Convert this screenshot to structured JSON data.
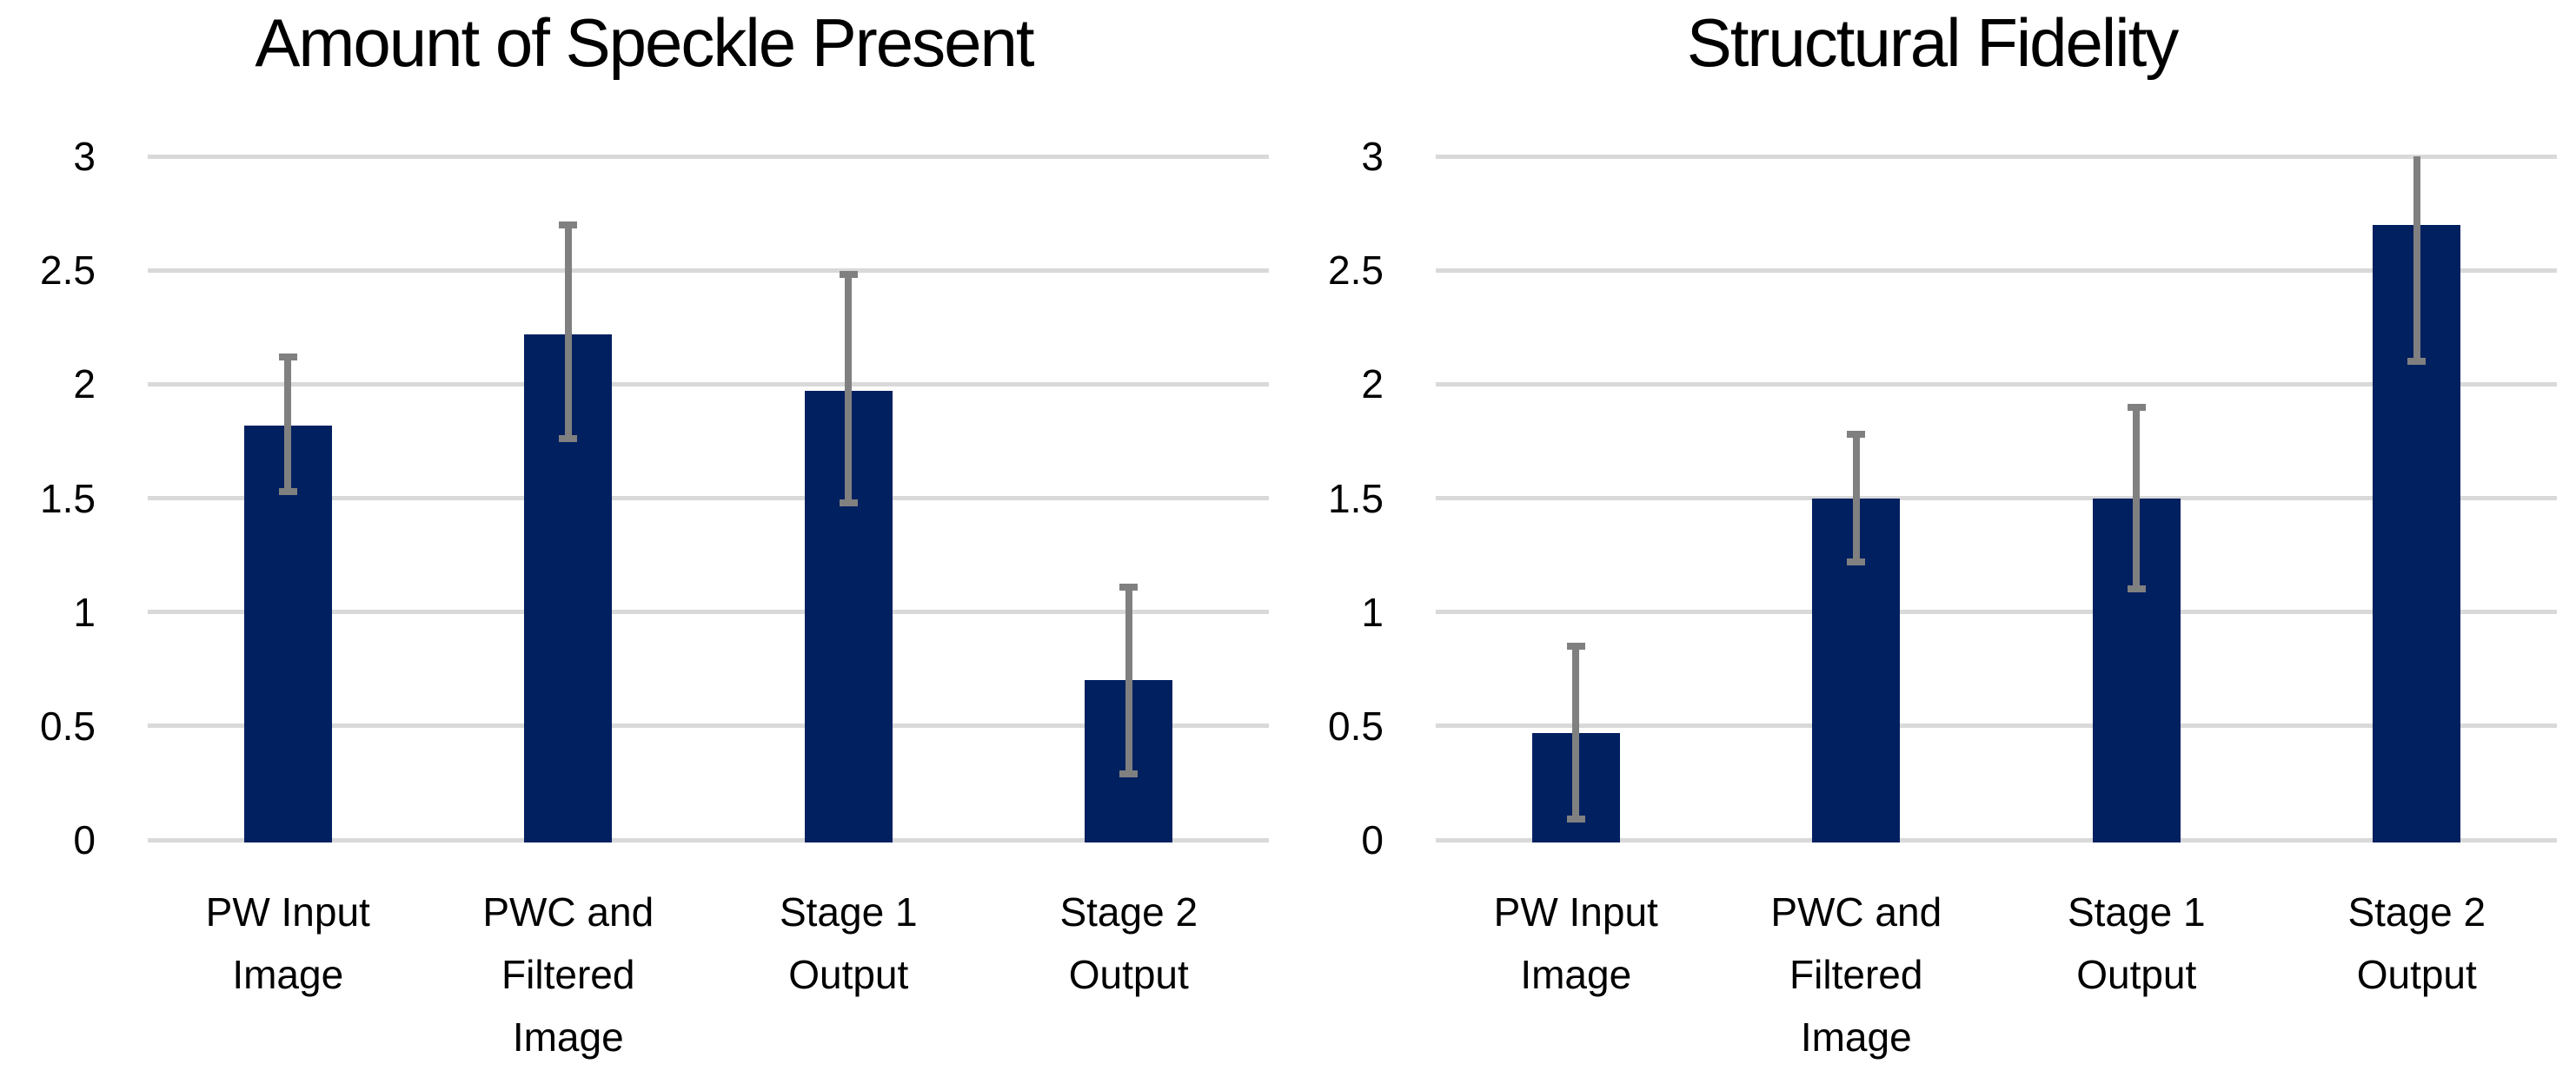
{
  "figure": {
    "background_color": "#ffffff",
    "description_left_panel": "Amount of Speckle Present",
    "description_right_panel": "Structural Fidelity"
  },
  "chart_data": [
    {
      "type": "bar",
      "title": "Amount of Speckle Present",
      "categories": [
        "PW Input Image",
        "PWC and Filtered Image",
        "Stage 1 Output",
        "Stage 2 Output"
      ],
      "category_lines": [
        [
          "PW Input",
          "Image"
        ],
        [
          "PWC and",
          "Filtered",
          "Image"
        ],
        [
          "Stage 1",
          "Output"
        ],
        [
          "Stage 2",
          "Output"
        ]
      ],
      "values": [
        1.82,
        2.22,
        1.97,
        0.7
      ],
      "error_low": [
        1.53,
        1.76,
        1.48,
        0.29
      ],
      "error_high": [
        2.12,
        2.7,
        2.48,
        1.11
      ],
      "xlabel": "",
      "ylabel": "",
      "ylim": [
        0,
        3
      ],
      "ytick_step": 0.5,
      "ytick_labels": [
        "0",
        "0.5",
        "1",
        "1.5",
        "2",
        "2.5",
        "3"
      ],
      "grid": true,
      "legend_position": "none",
      "bar_color": "#002060",
      "error_color": "#808080",
      "gridline_color": "#d9d9d9"
    },
    {
      "type": "bar",
      "title": "Structural Fidelity",
      "categories": [
        "PW Input Image",
        "PWC and Filtered Image",
        "Stage 1 Output",
        "Stage 2 Output"
      ],
      "category_lines": [
        [
          "PW Input",
          "Image"
        ],
        [
          "PWC and",
          "Filtered",
          "Image"
        ],
        [
          "Stage 1",
          "Output"
        ],
        [
          "Stage 2",
          "Output"
        ]
      ],
      "values": [
        0.47,
        1.5,
        1.5,
        2.7
      ],
      "error_low": [
        0.09,
        1.22,
        1.1,
        2.1
      ],
      "error_high": [
        0.85,
        1.78,
        1.9,
        3.0
      ],
      "xlabel": "",
      "ylabel": "",
      "ylim": [
        0,
        3
      ],
      "ytick_step": 0.5,
      "ytick_labels": [
        "0",
        "0.5",
        "1",
        "1.5",
        "2",
        "2.5",
        "3"
      ],
      "grid": true,
      "legend_position": "none",
      "bar_color": "#002060",
      "error_color": "#808080",
      "gridline_color": "#d9d9d9"
    }
  ]
}
